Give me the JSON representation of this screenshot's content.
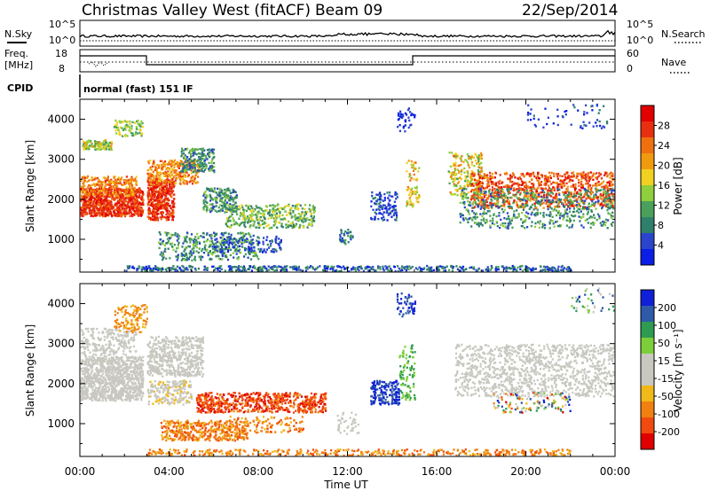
{
  "header": {
    "station": "Christmas Valley West (fitACF)",
    "beam": "Beam 09",
    "date": "22/Sep/2014"
  },
  "left_labels": {
    "nsky": "N.Sky",
    "freq_line1": "Freq.",
    "freq_line2": "[MHz]",
    "cpid": "CPID"
  },
  "right_labels": {
    "nsearch": "N.Search",
    "nave": "Nave"
  },
  "cpid_text": "normal (fast) 151 IF",
  "noise_panel": {
    "left_ticks": [
      "10^5",
      "10^0"
    ],
    "right_ticks": [
      "10^5",
      "10^0"
    ]
  },
  "freq_panel": {
    "left_ticks": [
      "18",
      "8"
    ],
    "right_ticks": [
      "60",
      "0"
    ]
  },
  "colors": {
    "power": [
      "#0a1ee6",
      "#2a44cc",
      "#2f7f6a",
      "#4aa05a",
      "#8fce3c",
      "#f0d020",
      "#f09a10",
      "#f07010",
      "#e83010",
      "#e00000"
    ],
    "velocity": [
      "#1020d8",
      "#2e5aa8",
      "#2e9a52",
      "#7ccf38",
      "#c8c8c0",
      "#c8c8c0",
      "#f0b818",
      "#f08010",
      "#f04a10",
      "#e00000"
    ]
  },
  "chart_data": [
    {
      "type": "heatmap",
      "title": "Power",
      "ylabel": "Slant Range [km]",
      "ylim": [
        180,
        4500
      ],
      "yticks": [
        "1000",
        "2000",
        "3000",
        "4000"
      ],
      "colorbar_label": "Power [dB]",
      "colorbar_ticks": [
        "4",
        "8",
        "12",
        "16",
        "20",
        "24",
        "28"
      ]
    },
    {
      "type": "heatmap",
      "title": "Velocity",
      "ylabel": "Slant Range [km]",
      "ylim": [
        180,
        4500
      ],
      "yticks": [
        "1000",
        "2000",
        "3000",
        "4000"
      ],
      "colorbar_label": "Velocity [m s⁻¹]",
      "colorbar_ticks": [
        "200",
        "100",
        "50",
        "15",
        "-15",
        "-50",
        "-100",
        "-200"
      ]
    }
  ],
  "xaxis": {
    "label": "Time UT",
    "ticks": [
      "00:00",
      "04:00",
      "08:00",
      "12:00",
      "16:00",
      "20:00",
      "00:00"
    ]
  }
}
